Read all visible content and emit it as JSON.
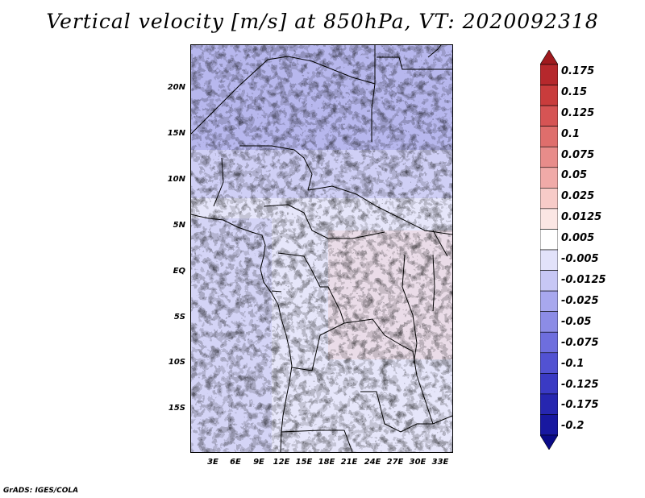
{
  "title": "Vertical velocity [m/s] at 850hPa, VT: 2020092318",
  "credit": "GrADS: IGES/COLA",
  "map": {
    "lat_labels": [
      "20N",
      "15N",
      "10N",
      "5N",
      "EQ",
      "5S",
      "10S",
      "15S"
    ],
    "lon_labels": [
      "3E",
      "6E",
      "9E",
      "12E",
      "15E",
      "18E",
      "21E",
      "24E",
      "27E",
      "30E",
      "33E"
    ]
  },
  "colorbar": {
    "labels": [
      "0.175",
      "0.15",
      "0.125",
      "0.1",
      "0.075",
      "0.05",
      "0.025",
      "0.0125",
      "0.005",
      "-0.005",
      "-0.0125",
      "-0.025",
      "-0.05",
      "-0.075",
      "-0.1",
      "-0.125",
      "-0.175",
      "-0.2"
    ],
    "colors": [
      "#a01a1e",
      "#b6282c",
      "#c93c3c",
      "#d65454",
      "#df6e6c",
      "#e88c8a",
      "#f0aaa8",
      "#f7cbc8",
      "#fbe6e4",
      "#ffffff",
      "#e2e2fa",
      "#c7c7f5",
      "#a8a8ee",
      "#8c8ce6",
      "#6e6ede",
      "#5252d2",
      "#3a3ac4",
      "#2626b0",
      "#1818a0",
      "#0b0b88"
    ]
  }
}
